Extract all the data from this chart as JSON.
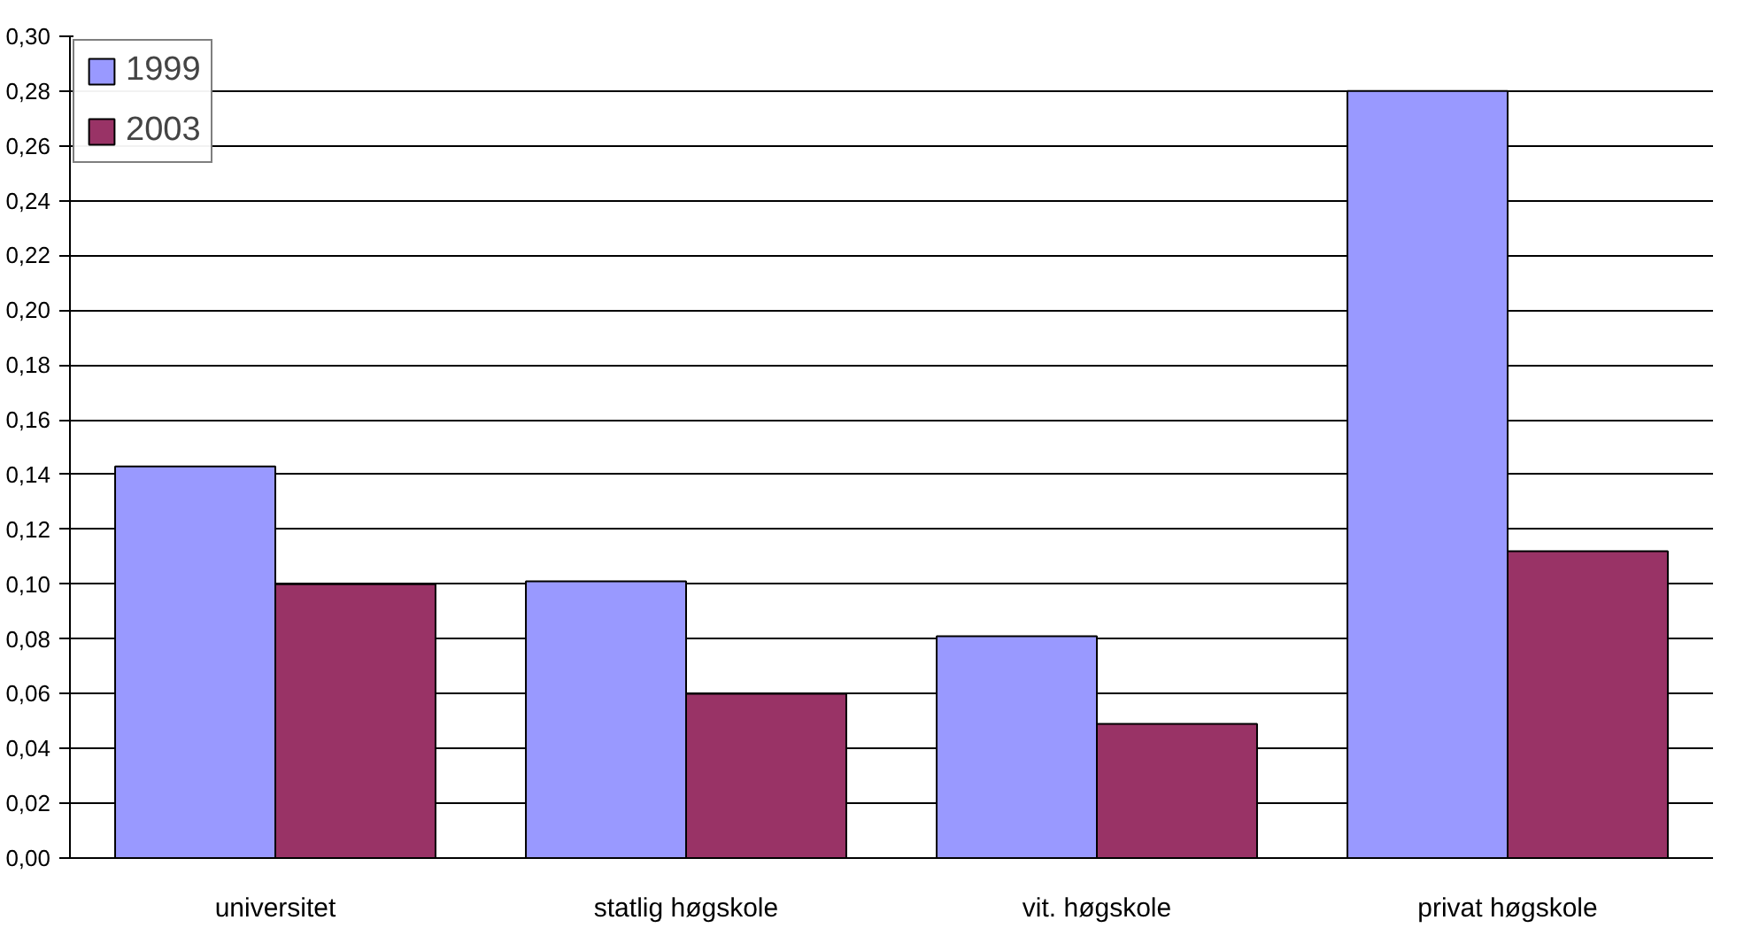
{
  "chart_data": {
    "type": "bar",
    "categories": [
      "universitet",
      "statlig høgskole",
      "vit. høgskole",
      "privat høgskole"
    ],
    "series": [
      {
        "name": "1999",
        "color": "#9999ff",
        "values": [
          0.143,
          0.101,
          0.081,
          0.28
        ]
      },
      {
        "name": "2003",
        "color": "#993366",
        "values": [
          0.1,
          0.06,
          0.049,
          0.112
        ]
      }
    ],
    "ylim": [
      0,
      0.3
    ],
    "yticks": [
      {
        "value": 0,
        "label": "0,00"
      },
      {
        "value": 0.02,
        "label": "0,02"
      },
      {
        "value": 0.04,
        "label": "0,04"
      },
      {
        "value": 0.06,
        "label": "0,06"
      },
      {
        "value": 0.08,
        "label": "0,08"
      },
      {
        "value": 0.1,
        "label": "0,10"
      },
      {
        "value": 0.12,
        "label": "0,12"
      },
      {
        "value": 0.14,
        "label": "0,14"
      },
      {
        "value": 0.16,
        "label": "0,16"
      },
      {
        "value": 0.18,
        "label": "0,18"
      },
      {
        "value": 0.2,
        "label": "0,20"
      },
      {
        "value": 0.22,
        "label": "0,22"
      },
      {
        "value": 0.24,
        "label": "0,24"
      },
      {
        "value": 0.26,
        "label": "0,26"
      },
      {
        "value": 0.28,
        "label": "0,28"
      },
      {
        "value": 0.3,
        "label": "0,30"
      }
    ],
    "grid": "y",
    "legend": "top left"
  }
}
